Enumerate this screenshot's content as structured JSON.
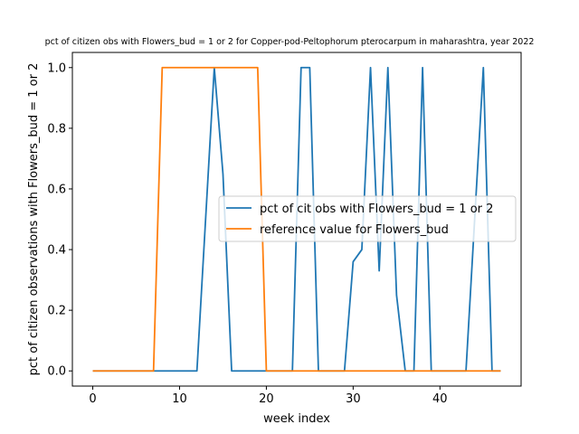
{
  "chart_data": {
    "type": "line",
    "title": "pct of citizen obs with Flowers_bud = 1 or 2 for Copper-pod-Peltophorum pterocarpum in maharashtra, year 2022",
    "xlabel": "week index",
    "ylabel": "pct of citizen observations with Flowers_bud = 1 or 2",
    "xlim": [
      -2.35,
      49.35
    ],
    "ylim": [
      -0.05,
      1.05
    ],
    "xticks": [
      0,
      10,
      20,
      30,
      40
    ],
    "yticks": [
      0.0,
      0.2,
      0.4,
      0.6,
      0.8,
      1.0
    ],
    "grid": false,
    "legend_position": "center-right",
    "series": [
      {
        "name": "pct of cit obs with Flowers_bud = 1 or 2",
        "color": "#1f77b4",
        "x": [
          0,
          1,
          2,
          3,
          4,
          5,
          6,
          7,
          8,
          9,
          10,
          11,
          12,
          13,
          14,
          15,
          16,
          17,
          18,
          19,
          20,
          21,
          22,
          23,
          24,
          25,
          26,
          27,
          28,
          29,
          30,
          31,
          32,
          33,
          34,
          35,
          36,
          37,
          38,
          39,
          40,
          41,
          42,
          43,
          44,
          45,
          46,
          47
        ],
        "y": [
          0,
          0,
          0,
          0,
          0,
          0,
          0,
          0,
          0,
          0,
          0,
          0,
          0,
          0.5,
          1,
          0.65,
          0,
          0,
          0,
          0,
          0,
          0,
          0,
          0,
          1,
          1,
          0,
          0,
          0,
          0,
          0.36,
          0.4,
          1,
          0.33,
          1,
          0.25,
          0,
          0,
          1,
          0,
          0,
          0,
          0,
          0,
          0.5,
          1,
          0,
          0
        ]
      },
      {
        "name": "reference value for Flowers_bud",
        "color": "#ff7f0e",
        "x": [
          0,
          1,
          2,
          3,
          4,
          5,
          6,
          7,
          8,
          9,
          10,
          11,
          12,
          13,
          14,
          15,
          16,
          17,
          18,
          19,
          20,
          21,
          22,
          23,
          24,
          25,
          26,
          27,
          28,
          29,
          30,
          31,
          32,
          33,
          34,
          35,
          36,
          37,
          38,
          39,
          40,
          41,
          42,
          43,
          44,
          45,
          46,
          47
        ],
        "y": [
          0,
          0,
          0,
          0,
          0,
          0,
          0,
          0,
          1,
          1,
          1,
          1,
          1,
          1,
          1,
          1,
          1,
          1,
          1,
          1,
          0,
          0,
          0,
          0,
          0,
          0,
          0,
          0,
          0,
          0,
          0,
          0,
          0,
          0,
          0,
          0,
          0,
          0,
          0,
          0,
          0,
          0,
          0,
          0,
          0,
          0,
          0,
          0
        ]
      }
    ]
  }
}
